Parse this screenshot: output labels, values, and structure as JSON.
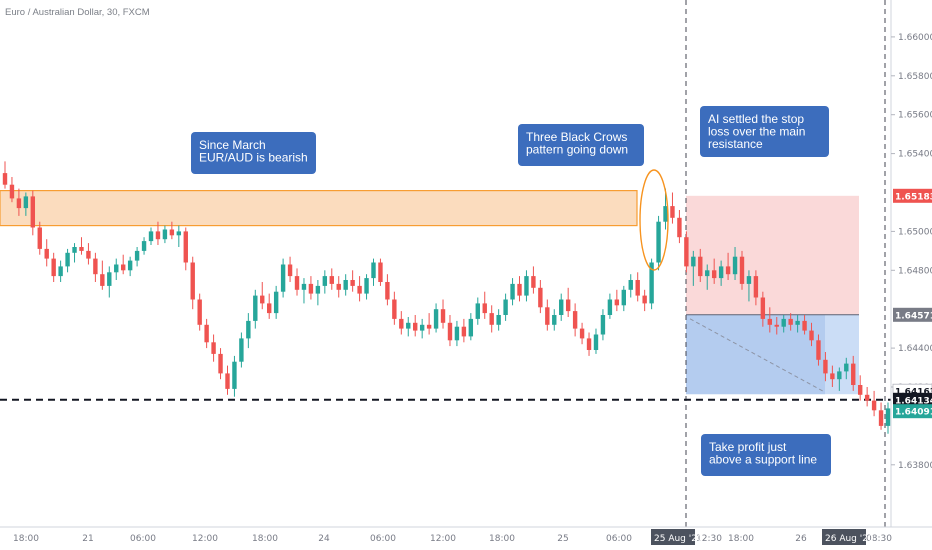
{
  "chart_data": {
    "type": "candlestick",
    "title": "Euro / Australian Dollar, 30, FXCM",
    "y_axis": {
      "ylim": [
        1.6348,
        1.6619
      ],
      "ticks": [
        "1.66000",
        "1.65800",
        "1.65600",
        "1.65400",
        "1.65000",
        "1.64800",
        "1.64400",
        "1.64200",
        "1.63800"
      ],
      "position": "right"
    },
    "x_axis": {
      "ticks": [
        "18:00",
        "21",
        "06:00",
        "12:00",
        "18:00",
        "24",
        "06:00",
        "12:00",
        "18:00",
        "25",
        "06:00",
        "12:30",
        "18:00",
        "26",
        "08:30"
      ]
    },
    "date_badges": [
      "25 Aug '20",
      "26 Aug '20"
    ],
    "candles": [
      [
        1.653,
        1.6536,
        1.6522,
        1.6524
      ],
      [
        1.6524,
        1.6528,
        1.6515,
        1.6517
      ],
      [
        1.6517,
        1.6522,
        1.6508,
        1.6512
      ],
      [
        1.6512,
        1.652,
        1.6508,
        1.6518
      ],
      [
        1.6518,
        1.6521,
        1.6498,
        1.6502
      ],
      [
        1.6502,
        1.6505,
        1.6488,
        1.6491
      ],
      [
        1.6491,
        1.6496,
        1.6482,
        1.6486
      ],
      [
        1.6486,
        1.6489,
        1.6474,
        1.6477
      ],
      [
        1.6477,
        1.6485,
        1.6474,
        1.6482
      ],
      [
        1.6482,
        1.6491,
        1.6479,
        1.6489
      ],
      [
        1.6489,
        1.6494,
        1.6484,
        1.6492
      ],
      [
        1.6492,
        1.6497,
        1.6488,
        1.649
      ],
      [
        1.649,
        1.6494,
        1.6483,
        1.6486
      ],
      [
        1.6486,
        1.6489,
        1.6474,
        1.6478
      ],
      [
        1.6478,
        1.6485,
        1.647,
        1.6472
      ],
      [
        1.6472,
        1.6482,
        1.6466,
        1.6479
      ],
      [
        1.6479,
        1.6486,
        1.6475,
        1.6483
      ],
      [
        1.6483,
        1.6488,
        1.6478,
        1.648
      ],
      [
        1.648,
        1.6487,
        1.6477,
        1.6485
      ],
      [
        1.6485,
        1.6492,
        1.6482,
        1.649
      ],
      [
        1.649,
        1.6497,
        1.6488,
        1.6495
      ],
      [
        1.6495,
        1.6502,
        1.6493,
        1.65
      ],
      [
        1.65,
        1.6505,
        1.6493,
        1.6496
      ],
      [
        1.6496,
        1.6503,
        1.6494,
        1.6501
      ],
      [
        1.6501,
        1.6505,
        1.6496,
        1.6498
      ],
      [
        1.6498,
        1.6503,
        1.6492,
        1.65
      ],
      [
        1.65,
        1.6502,
        1.648,
        1.6484
      ],
      [
        1.6484,
        1.6487,
        1.646,
        1.6465
      ],
      [
        1.6465,
        1.6468,
        1.6449,
        1.6452
      ],
      [
        1.6452,
        1.6455,
        1.644,
        1.6443
      ],
      [
        1.6443,
        1.6447,
        1.6433,
        1.6437
      ],
      [
        1.6437,
        1.644,
        1.6424,
        1.6427
      ],
      [
        1.6427,
        1.6431,
        1.6416,
        1.6419
      ],
      [
        1.6419,
        1.6436,
        1.6415,
        1.6433
      ],
      [
        1.6433,
        1.6448,
        1.643,
        1.6445
      ],
      [
        1.6445,
        1.6458,
        1.644,
        1.6454
      ],
      [
        1.6454,
        1.647,
        1.645,
        1.6467
      ],
      [
        1.6467,
        1.6474,
        1.646,
        1.6463
      ],
      [
        1.6463,
        1.6468,
        1.6455,
        1.6458
      ],
      [
        1.6458,
        1.6472,
        1.6455,
        1.6469
      ],
      [
        1.6469,
        1.6486,
        1.6466,
        1.6483
      ],
      [
        1.6483,
        1.6487,
        1.6474,
        1.6477
      ],
      [
        1.6477,
        1.6481,
        1.6467,
        1.647
      ],
      [
        1.647,
        1.6476,
        1.6463,
        1.6473
      ],
      [
        1.6473,
        1.6477,
        1.6465,
        1.6468
      ],
      [
        1.6468,
        1.6475,
        1.6462,
        1.6472
      ],
      [
        1.6472,
        1.648,
        1.6468,
        1.6477
      ],
      [
        1.6477,
        1.6481,
        1.647,
        1.6473
      ],
      [
        1.6473,
        1.6477,
        1.6466,
        1.647
      ],
      [
        1.647,
        1.6478,
        1.6467,
        1.6475
      ],
      [
        1.6475,
        1.648,
        1.6469,
        1.6472
      ],
      [
        1.6472,
        1.6477,
        1.6464,
        1.6468
      ],
      [
        1.6468,
        1.6478,
        1.6465,
        1.6476
      ],
      [
        1.6476,
        1.6486,
        1.6472,
        1.6484
      ],
      [
        1.6484,
        1.6486,
        1.6472,
        1.6474
      ],
      [
        1.6474,
        1.6478,
        1.6462,
        1.6465
      ],
      [
        1.6465,
        1.6469,
        1.6452,
        1.6455
      ],
      [
        1.6455,
        1.6459,
        1.6447,
        1.645
      ],
      [
        1.645,
        1.6456,
        1.6446,
        1.6453
      ],
      [
        1.6453,
        1.6457,
        1.6446,
        1.6449
      ],
      [
        1.6449,
        1.6455,
        1.6445,
        1.6452
      ],
      [
        1.6452,
        1.6458,
        1.6447,
        1.645
      ],
      [
        1.645,
        1.6463,
        1.6448,
        1.646
      ],
      [
        1.646,
        1.6465,
        1.645,
        1.6453
      ],
      [
        1.6453,
        1.6457,
        1.6441,
        1.6444
      ],
      [
        1.6444,
        1.6454,
        1.6441,
        1.6451
      ],
      [
        1.6451,
        1.6455,
        1.6443,
        1.6446
      ],
      [
        1.6446,
        1.6458,
        1.6444,
        1.6455
      ],
      [
        1.6455,
        1.6466,
        1.6452,
        1.6463
      ],
      [
        1.6463,
        1.6469,
        1.6455,
        1.6458
      ],
      [
        1.6458,
        1.6462,
        1.6448,
        1.6452
      ],
      [
        1.6452,
        1.646,
        1.6449,
        1.6457
      ],
      [
        1.6457,
        1.6468,
        1.6454,
        1.6465
      ],
      [
        1.6465,
        1.6476,
        1.6462,
        1.6473
      ],
      [
        1.6473,
        1.6477,
        1.6464,
        1.6467
      ],
      [
        1.6467,
        1.648,
        1.6464,
        1.6477
      ],
      [
        1.6477,
        1.6482,
        1.6468,
        1.6471
      ],
      [
        1.6471,
        1.6475,
        1.6458,
        1.6461
      ],
      [
        1.6461,
        1.6465,
        1.6449,
        1.6452
      ],
      [
        1.6452,
        1.646,
        1.6449,
        1.6457
      ],
      [
        1.6457,
        1.6468,
        1.6454,
        1.6465
      ],
      [
        1.6465,
        1.6471,
        1.6456,
        1.6459
      ],
      [
        1.6459,
        1.6463,
        1.6446,
        1.645
      ],
      [
        1.645,
        1.6453,
        1.6442,
        1.6445
      ],
      [
        1.6445,
        1.6448,
        1.6436,
        1.6439
      ],
      [
        1.6439,
        1.645,
        1.6437,
        1.6447
      ],
      [
        1.6447,
        1.646,
        1.6444,
        1.6457
      ],
      [
        1.6457,
        1.6468,
        1.6455,
        1.6465
      ],
      [
        1.6465,
        1.647,
        1.6459,
        1.6462
      ],
      [
        1.6462,
        1.6472,
        1.6459,
        1.647
      ],
      [
        1.647,
        1.6478,
        1.6466,
        1.6475
      ],
      [
        1.6475,
        1.6479,
        1.6464,
        1.6467
      ],
      [
        1.6467,
        1.647,
        1.6459,
        1.6463
      ],
      [
        1.6463,
        1.6486,
        1.646,
        1.6484
      ],
      [
        1.6484,
        1.6508,
        1.648,
        1.6505
      ],
      [
        1.6505,
        1.6522,
        1.6501,
        1.6513
      ],
      [
        1.6513,
        1.652,
        1.6504,
        1.6507
      ],
      [
        1.6507,
        1.6511,
        1.6494,
        1.6497
      ],
      [
        1.6497,
        1.65,
        1.6479,
        1.6482
      ],
      [
        1.6482,
        1.649,
        1.6472,
        1.6487
      ],
      [
        1.6487,
        1.6491,
        1.6474,
        1.6477
      ],
      [
        1.6477,
        1.6483,
        1.647,
        1.648
      ],
      [
        1.648,
        1.6486,
        1.6473,
        1.6476
      ],
      [
        1.6476,
        1.6485,
        1.6472,
        1.6482
      ],
      [
        1.6482,
        1.6489,
        1.6475,
        1.6478
      ],
      [
        1.6478,
        1.6492,
        1.6475,
        1.6487
      ],
      [
        1.6487,
        1.649,
        1.647,
        1.6473
      ],
      [
        1.6473,
        1.648,
        1.6464,
        1.6477
      ],
      [
        1.6477,
        1.648,
        1.6462,
        1.6466
      ],
      [
        1.6466,
        1.6469,
        1.6451,
        1.6455
      ],
      [
        1.6455,
        1.6461,
        1.6448,
        1.6452
      ],
      [
        1.6452,
        1.6456,
        1.6447,
        1.6451
      ],
      [
        1.6451,
        1.6457,
        1.6448,
        1.6455
      ],
      [
        1.6455,
        1.6458,
        1.6449,
        1.6452
      ],
      [
        1.6452,
        1.6457,
        1.6448,
        1.6454
      ],
      [
        1.6454,
        1.6457,
        1.6447,
        1.6449
      ],
      [
        1.6449,
        1.6453,
        1.6441,
        1.6444
      ],
      [
        1.6444,
        1.6447,
        1.6431,
        1.6434
      ],
      [
        1.6434,
        1.6438,
        1.6423,
        1.6427
      ],
      [
        1.6427,
        1.6431,
        1.642,
        1.6424
      ],
      [
        1.6424,
        1.643,
        1.6418,
        1.6428
      ],
      [
        1.6428,
        1.6435,
        1.6424,
        1.6432
      ],
      [
        1.6432,
        1.6436,
        1.6418,
        1.6421
      ],
      [
        1.6421,
        1.6426,
        1.6413,
        1.6416
      ],
      [
        1.6416,
        1.642,
        1.641,
        1.6413
      ],
      [
        1.6413,
        1.6418,
        1.6405,
        1.6408
      ],
      [
        1.6408,
        1.6412,
        1.6398,
        1.64
      ],
      [
        1.64,
        1.6412,
        1.6396,
        1.6409
      ]
    ],
    "levels": [
      {
        "value": 1.65183,
        "label": "1.65183",
        "color": "#ef5350",
        "style": "stop-loss"
      },
      {
        "value": 1.64571,
        "label": "1.64571",
        "color": "#787b86",
        "style": "entry"
      },
      {
        "value": 1.64163,
        "label": "1.64163",
        "color": "#2962ff",
        "style": "take-profit"
      },
      {
        "value": 1.64134,
        "label": "1.64134",
        "color": "#131722",
        "style": "support-line"
      },
      {
        "value": 1.64091,
        "label": "1.64091",
        "color": "#26a69a",
        "style": "last-price"
      }
    ],
    "resistance_zone": {
      "from": 1.6503,
      "to": 1.6521,
      "color": "#f7931e"
    },
    "annotations": [
      {
        "text": [
          "Since March",
          "EUR/AUD is bearish"
        ]
      },
      {
        "text": [
          "Three Black Crows",
          "pattern going down"
        ]
      },
      {
        "text": [
          "AI settled the stop",
          "loss over the main",
          "resistance"
        ]
      },
      {
        "text": [
          "Take profit just",
          "above a support line"
        ]
      }
    ],
    "colors": {
      "up": "#26a69a",
      "down": "#ef5350",
      "annotation": "#3c6dbd"
    }
  }
}
